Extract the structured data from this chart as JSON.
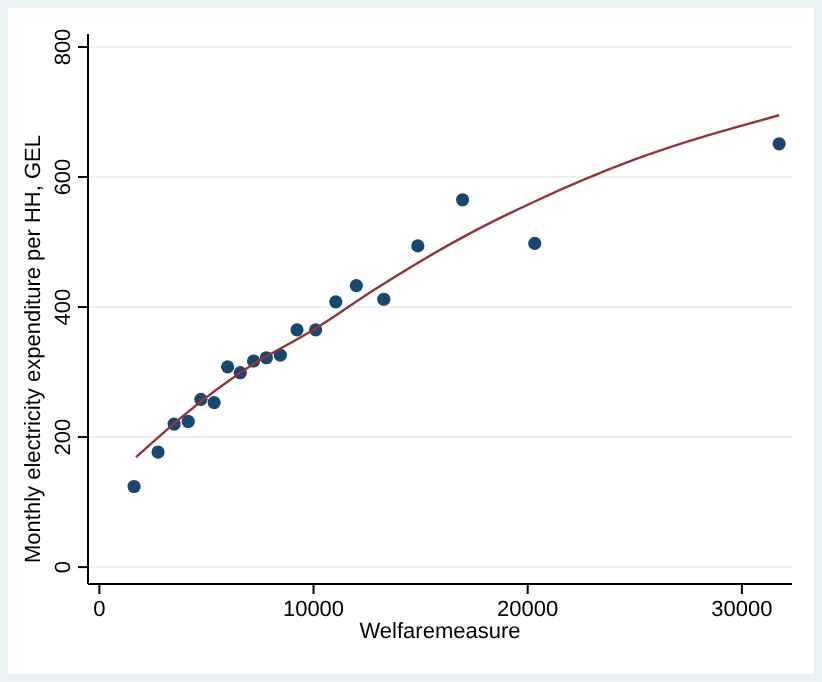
{
  "chart_data": {
    "type": "scatter",
    "xlabel": "Welfaremeasure",
    "ylabel": "Monthly electricity expenditure per HH, GEL",
    "xlim": [
      -530,
      32340
    ],
    "ylim": [
      -26,
      820
    ],
    "xticks": [
      0,
      10000,
      20000,
      30000
    ],
    "yticks": [
      0,
      200,
      400,
      600,
      800
    ],
    "grid": "y",
    "series": [
      {
        "color": "#1a476f",
        "marker": "circle",
        "x": [
          1620,
          2740,
          3490,
          4150,
          4740,
          5360,
          5990,
          6580,
          7200,
          7800,
          8450,
          9230,
          10100,
          11040,
          12000,
          13280,
          14870,
          16960,
          20330,
          31740
        ],
        "values": [
          124,
          177,
          220,
          224,
          258,
          253,
          308,
          299,
          317,
          322,
          326,
          365,
          365,
          408,
          433,
          412,
          494,
          565,
          498,
          651
        ]
      },
      {
        "type": "line",
        "color": "#90353b",
        "marker": "none",
        "x": [
          1710,
          4000,
          7000,
          10000,
          13000,
          17000,
          20300,
          25000,
          31740
        ],
        "values": [
          169,
          235,
          308,
          365,
          430,
          508,
          562,
          627,
          695
        ]
      }
    ]
  }
}
